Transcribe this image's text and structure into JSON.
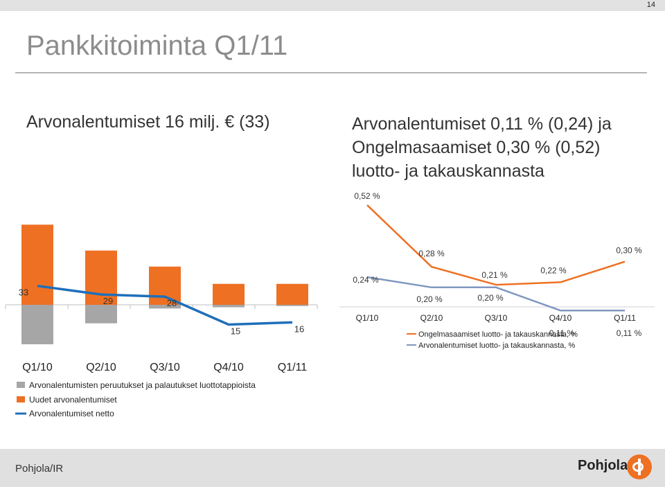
{
  "page_number": "14",
  "title": "Pankkitoiminta Q1/11",
  "left_subtitle": "Arvonalentumiset 16 milj. € (33)",
  "right_subtitle": [
    "Arvonalentumiset 0,11 % (0,24) ja",
    "Ongelmasaamiset 0,30 % (0,52)",
    "luotto- ja takauskannasta"
  ],
  "footer": {
    "left": "Pohjola/IR",
    "brand": "Pohjola"
  },
  "colors": {
    "orange": "#ee7023",
    "grey": "#a6a6a6",
    "blue": "#1f6fba",
    "light_blue": "#7f97c0"
  },
  "chart_data": [
    {
      "type": "bar",
      "categories": [
        "Q1/10",
        "Q2/10",
        "Q3/10",
        "Q4/10",
        "Q1/11"
      ],
      "series": [
        {
          "name": "Arvonalentumisten peruutukset ja palautukset luottotappioista",
          "type": "bar",
          "color": "#a6a6a6",
          "values": [
            -32,
            -15,
            -3,
            -2,
            -1
          ]
        },
        {
          "name": "Uudet arvonalentumiset",
          "type": "bar",
          "color": "#ee7023",
          "values": [
            65,
            44,
            31,
            17,
            17
          ]
        },
        {
          "name": "Arvonalentumiset netto",
          "type": "line",
          "color": "#1f6fba",
          "values": [
            33,
            29,
            28,
            15,
            16
          ]
        }
      ],
      "data_labels": [
        "33",
        "29",
        "28",
        "15",
        "16"
      ],
      "legend_position": "bottom-left"
    },
    {
      "type": "line",
      "categories": [
        "Q1/10",
        "Q2/10",
        "Q3/10",
        "Q4/10",
        "Q1/11"
      ],
      "series": [
        {
          "name": "Ongelmasaamiset luotto- ja takauskannasta, %",
          "color": "#ee7023",
          "values": [
            0.52,
            0.28,
            0.21,
            0.22,
            0.3
          ],
          "labels": [
            "0,52 %",
            "0,28 %",
            "0,21 %",
            "0,22 %",
            "0,30 %"
          ]
        },
        {
          "name": "Arvonalentumiset luotto- ja takauskannasta, %",
          "color": "#7f97c0",
          "values": [
            0.24,
            0.2,
            0.2,
            0.11,
            0.11
          ],
          "labels": [
            "0,24 %",
            "0,20 %",
            "0,20 %",
            "0,11 %",
            "0,11 %"
          ]
        }
      ],
      "legend_position": "bottom-right"
    }
  ]
}
